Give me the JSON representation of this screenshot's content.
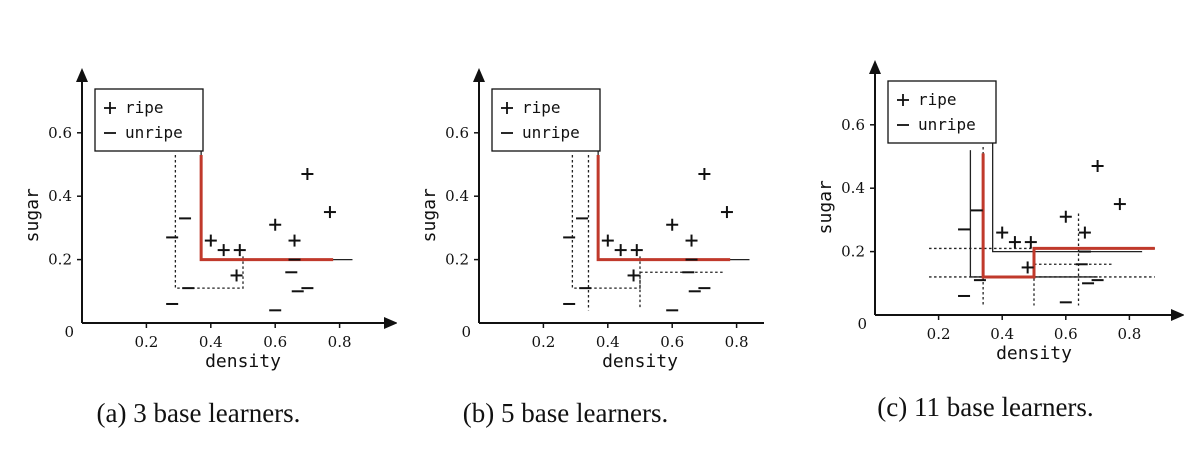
{
  "chart_data": [
    {
      "type": "scatter",
      "caption": "(a) 3 base learners.",
      "xlabel": "density",
      "ylabel": "sugar",
      "xlim": [
        0,
        0.9
      ],
      "ylim": [
        0,
        0.75
      ],
      "xticks": [
        "0.2",
        "0.4",
        "0.6",
        "0.8"
      ],
      "yticks": [
        "0.2",
        "0.4",
        "0.6"
      ],
      "origin_label": "0",
      "legend": {
        "position": "top-left",
        "entries": [
          {
            "symbol": "+",
            "label": "ripe"
          },
          {
            "symbol": "−",
            "label": "unripe"
          }
        ]
      },
      "series": [
        {
          "name": "ripe",
          "marker": "+",
          "points": [
            [
              0.4,
              0.26
            ],
            [
              0.44,
              0.23
            ],
            [
              0.49,
              0.23
            ],
            [
              0.48,
              0.15
            ],
            [
              0.6,
              0.31
            ],
            [
              0.66,
              0.26
            ],
            [
              0.7,
              0.47
            ],
            [
              0.77,
              0.35
            ]
          ]
        },
        {
          "name": "unripe",
          "marker": "−",
          "points": [
            [
              0.28,
              0.27
            ],
            [
              0.32,
              0.33
            ],
            [
              0.28,
              0.06
            ],
            [
              0.33,
              0.11
            ],
            [
              0.6,
              0.04
            ],
            [
              0.65,
              0.16
            ],
            [
              0.66,
              0.2
            ],
            [
              0.67,
              0.1
            ],
            [
              0.7,
              0.11
            ]
          ]
        }
      ],
      "boundaries": [
        {
          "style": "solid",
          "color": "#222222",
          "x": [
            0.37,
            0.37,
            0.84
          ],
          "y": [
            0.59,
            0.2,
            0.2
          ]
        },
        {
          "style": "dotted",
          "color": "#222222",
          "x": [
            0.29,
            0.29,
            0.5,
            0.5
          ],
          "y": [
            0.53,
            0.11,
            0.11,
            0.21
          ]
        },
        {
          "style": "thick",
          "color": "#c0392b",
          "x": [
            0.37,
            0.37,
            0.78
          ],
          "y": [
            0.53,
            0.2,
            0.2
          ]
        }
      ]
    },
    {
      "type": "scatter",
      "caption": "(b) 5 base learners.",
      "xlabel": "density",
      "ylabel": "sugar",
      "xlim": [
        0,
        0.9
      ],
      "ylim": [
        0,
        0.75
      ],
      "xticks": [
        "0.2",
        "0.4",
        "0.6",
        "0.8"
      ],
      "yticks": [
        "0.2",
        "0.4",
        "0.6"
      ],
      "origin_label": "0",
      "legend": {
        "position": "top-left",
        "entries": [
          {
            "symbol": "+",
            "label": "ripe"
          },
          {
            "symbol": "−",
            "label": "unripe"
          }
        ]
      },
      "series": [
        {
          "name": "ripe",
          "marker": "+",
          "points": [
            [
              0.4,
              0.26
            ],
            [
              0.44,
              0.23
            ],
            [
              0.49,
              0.23
            ],
            [
              0.48,
              0.15
            ],
            [
              0.6,
              0.31
            ],
            [
              0.66,
              0.26
            ],
            [
              0.7,
              0.47
            ],
            [
              0.77,
              0.35
            ]
          ]
        },
        {
          "name": "unripe",
          "marker": "−",
          "points": [
            [
              0.28,
              0.27
            ],
            [
              0.32,
              0.33
            ],
            [
              0.28,
              0.06
            ],
            [
              0.33,
              0.11
            ],
            [
              0.6,
              0.04
            ],
            [
              0.65,
              0.16
            ],
            [
              0.66,
              0.2
            ],
            [
              0.67,
              0.1
            ],
            [
              0.7,
              0.11
            ]
          ]
        }
      ],
      "boundaries": [
        {
          "style": "solid",
          "color": "#222222",
          "x": [
            0.37,
            0.37,
            0.84
          ],
          "y": [
            0.59,
            0.2,
            0.2
          ]
        },
        {
          "style": "dotted",
          "color": "#222222",
          "x": [
            0.29,
            0.29,
            0.5,
            0.5
          ],
          "y": [
            0.53,
            0.11,
            0.11,
            0.21
          ]
        },
        {
          "style": "dotted",
          "color": "#222222",
          "x": [
            0.34,
            0.34
          ],
          "y": [
            0.53,
            0.04
          ]
        },
        {
          "style": "dotted",
          "color": "#222222",
          "x": [
            0.5,
            0.5,
            0.76
          ],
          "y": [
            0.05,
            0.16,
            0.16
          ]
        },
        {
          "style": "thick",
          "color": "#c0392b",
          "x": [
            0.37,
            0.37,
            0.78
          ],
          "y": [
            0.53,
            0.2,
            0.2
          ]
        }
      ]
    },
    {
      "type": "scatter",
      "caption": "(c) 11 base learners.",
      "xlabel": "density",
      "ylabel": "sugar",
      "xlim": [
        0,
        0.9
      ],
      "ylim": [
        0,
        0.75
      ],
      "xticks": [
        "0.2",
        "0.4",
        "0.6",
        "0.8"
      ],
      "yticks": [
        "0.2",
        "0.4",
        "0.6"
      ],
      "origin_label": "0",
      "legend": {
        "position": "top-left",
        "entries": [
          {
            "symbol": "+",
            "label": "ripe"
          },
          {
            "symbol": "−",
            "label": "unripe"
          }
        ]
      },
      "series": [
        {
          "name": "ripe",
          "marker": "+",
          "points": [
            [
              0.4,
              0.26
            ],
            [
              0.44,
              0.23
            ],
            [
              0.49,
              0.23
            ],
            [
              0.48,
              0.15
            ],
            [
              0.6,
              0.31
            ],
            [
              0.66,
              0.26
            ],
            [
              0.7,
              0.47
            ],
            [
              0.77,
              0.35
            ]
          ]
        },
        {
          "name": "unripe",
          "marker": "−",
          "points": [
            [
              0.28,
              0.27
            ],
            [
              0.32,
              0.33
            ],
            [
              0.28,
              0.06
            ],
            [
              0.33,
              0.11
            ],
            [
              0.6,
              0.04
            ],
            [
              0.65,
              0.16
            ],
            [
              0.66,
              0.2
            ],
            [
              0.67,
              0.1
            ],
            [
              0.7,
              0.11
            ]
          ]
        }
      ],
      "boundaries": [
        {
          "style": "solid",
          "color": "#222222",
          "x": [
            0.37,
            0.37,
            0.84
          ],
          "y": [
            0.61,
            0.2,
            0.2
          ]
        },
        {
          "style": "solid",
          "color": "#222222",
          "x": [
            0.3,
            0.3
          ],
          "y": [
            0.52,
            0.12
          ]
        },
        {
          "style": "solid",
          "color": "#222222",
          "x": [
            0.3,
            0.7
          ],
          "y": [
            0.12,
            0.12
          ]
        },
        {
          "style": "dotted",
          "color": "#222222",
          "x": [
            0.17,
            0.88
          ],
          "y": [
            0.21,
            0.21
          ]
        },
        {
          "style": "dotted",
          "color": "#222222",
          "x": [
            0.17,
            0.88
          ],
          "y": [
            0.12,
            0.12
          ]
        },
        {
          "style": "dotted",
          "color": "#222222",
          "x": [
            0.34,
            0.34
          ],
          "y": [
            0.53,
            0.03
          ]
        },
        {
          "style": "dotted",
          "color": "#222222",
          "x": [
            0.5,
            0.5
          ],
          "y": [
            0.21,
            0.03
          ]
        },
        {
          "style": "dotted",
          "color": "#222222",
          "x": [
            0.5,
            0.75
          ],
          "y": [
            0.16,
            0.16
          ]
        },
        {
          "style": "dotted",
          "color": "#222222",
          "x": [
            0.64,
            0.64
          ],
          "y": [
            0.32,
            0.03
          ]
        },
        {
          "style": "thick",
          "color": "#c0392b",
          "x": [
            0.34,
            0.34,
            0.5,
            0.5,
            0.88
          ],
          "y": [
            0.51,
            0.12,
            0.12,
            0.21,
            0.21
          ]
        }
      ]
    }
  ]
}
